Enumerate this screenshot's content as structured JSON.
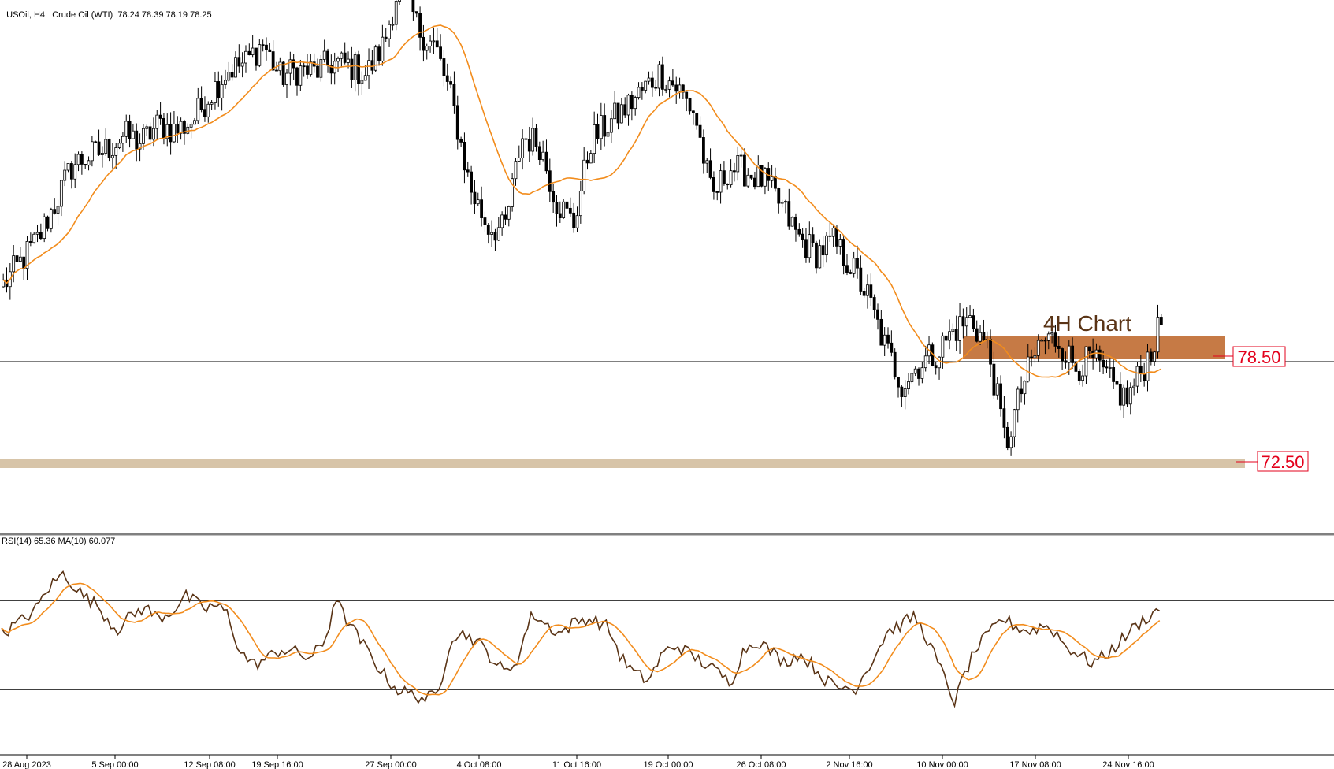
{
  "header": {
    "symbol": "USOil, H4:  Crude Oil (WTI)",
    "ohlc": "78.24 78.39 78.19 78.25"
  },
  "annotation": {
    "text": "4H Chart"
  },
  "levels": [
    {
      "label": "78.50",
      "value": 78.5
    },
    {
      "label": "72.50",
      "value": 72.5
    }
  ],
  "rsi_header": "RSI(14) 65.36 MA(10) 60.077",
  "colors": {
    "candle": "#000000",
    "ma": "#f28c1c",
    "rsi": "#5a3416",
    "zone_resistance": "#c67a45",
    "zone_support": "#d7c4a8",
    "level_label": "#e3001b"
  },
  "chart_data": [
    {
      "type": "candlestick",
      "title": "USOil, H4:  Crude Oil (WTI)",
      "ylim": [
        71.0,
        90.5
      ],
      "x_ticks": [
        "28 Aug 2023",
        "5 Sep 00:00",
        "12 Sep 08:00",
        "19 Sep 16:00",
        "27 Sep 00:00",
        "4 Oct 08:00",
        "11 Oct 16:00",
        "19 Oct 00:00",
        "26 Oct 08:00",
        "2 Nov 16:00",
        "10 Nov 00:00",
        "17 Nov 08:00",
        "24 Nov 16:00"
      ],
      "price_path": [
        [
          "28 Aug 2023",
          80.0
        ],
        [
          "29 Aug",
          81.0
        ],
        [
          "30 Aug",
          82.0
        ],
        [
          "31 Aug",
          83.6
        ],
        [
          "1 Sep",
          85.3
        ],
        [
          "4 Sep",
          85.7
        ],
        [
          "5 Sep 00:00",
          86.0
        ],
        [
          "6 Sep",
          86.6
        ],
        [
          "7 Sep",
          86.3
        ],
        [
          "8 Sep",
          87.1
        ],
        [
          "11 Sep",
          86.8
        ],
        [
          "12 Sep 08:00",
          87.3
        ],
        [
          "13 Sep",
          88.5
        ],
        [
          "14 Sep",
          89.5
        ],
        [
          "15 Sep",
          89.8
        ],
        [
          "18 Sep",
          90.7
        ],
        [
          "19 Sep 16:00",
          89.2
        ],
        [
          "20 Sep",
          89.5
        ],
        [
          "21 Sep",
          89.4
        ],
        [
          "22 Sep",
          89.8
        ],
        [
          "25 Sep",
          89.7
        ],
        [
          "26 Sep",
          89.3
        ],
        [
          "27 Sep 00:00",
          90.6
        ],
        [
          "28 Sep",
          93.6
        ],
        [
          "29 Sep",
          91.3
        ],
        [
          "2 Oct",
          90.5
        ],
        [
          "3 Oct",
          88.0
        ],
        [
          "4 Oct 08:00",
          84.3
        ],
        [
          "5 Oct",
          82.6
        ],
        [
          "6 Oct",
          82.4
        ],
        [
          "9 Oct",
          86.5
        ],
        [
          "10 Oct",
          86.3
        ],
        [
          "11 Oct 16:00",
          83.7
        ],
        [
          "12 Oct",
          82.7
        ],
        [
          "13 Oct",
          86.4
        ],
        [
          "16 Oct",
          87.1
        ],
        [
          "17 Oct",
          87.8
        ],
        [
          "18 Oct",
          88.6
        ],
        [
          "19 Oct 00:00",
          89.4
        ],
        [
          "20 Oct",
          88.7
        ],
        [
          "23 Oct",
          87.6
        ],
        [
          "24 Oct",
          83.8
        ],
        [
          "25 Oct",
          85.2
        ],
        [
          "26 Oct 08:00",
          85.0
        ],
        [
          "27 Oct",
          84.6
        ],
        [
          "30 Oct",
          83.5
        ],
        [
          "31 Oct",
          82.1
        ],
        [
          "1 Nov",
          81.4
        ],
        [
          "2 Nov 16:00",
          81.9
        ],
        [
          "3 Nov",
          80.9
        ],
        [
          "6 Nov",
          79.5
        ],
        [
          "7 Nov",
          77.3
        ],
        [
          "8 Nov",
          75.6
        ],
        [
          "9 Nov",
          76.5
        ],
        [
          "10 Nov 00:00",
          77.0
        ],
        [
          "13 Nov",
          78.0
        ],
        [
          "14 Nov",
          78.5
        ],
        [
          "15 Nov",
          77.1
        ],
        [
          "16 Nov",
          72.9
        ],
        [
          "17 Nov",
          75.6
        ],
        [
          "20 Nov",
          77.5
        ],
        [
          "21 Nov",
          77.6
        ],
        [
          "22 Nov",
          76.4
        ],
        [
          "23 Nov",
          76.7
        ],
        [
          "24 Nov 16:00",
          75.7
        ],
        [
          "27 Nov",
          74.9
        ],
        [
          "28 Nov",
          76.4
        ],
        [
          "29 Nov",
          78.25
        ]
      ],
      "series": [
        {
          "name": "USOil"
        },
        {
          "type": "line",
          "smoothing": 20
        }
      ]
    },
    {
      "type": "line",
      "title": "RSI(14) 65.36 MA(10) 60.077",
      "ylim": [
        0,
        100
      ],
      "levels": [
        70,
        30
      ],
      "series": [
        {
          "name": "RSI(14)",
          "smoothing": 1
        },
        {
          "name": "MA(10)",
          "smoothing": 10
        }
      ],
      "rsi_path": [
        [
          0,
          55
        ],
        [
          3,
          61
        ],
        [
          5,
          66
        ],
        [
          7,
          76
        ],
        [
          9,
          82
        ],
        [
          10,
          79
        ],
        [
          12,
          72
        ],
        [
          14,
          68
        ],
        [
          16,
          60
        ],
        [
          17,
          57
        ],
        [
          19,
          63
        ],
        [
          21,
          67
        ],
        [
          23,
          62
        ],
        [
          25,
          65
        ],
        [
          27,
          72
        ],
        [
          28,
          70
        ],
        [
          30,
          66
        ],
        [
          31,
          68
        ],
        [
          33,
          65
        ],
        [
          35,
          47
        ],
        [
          37,
          41
        ],
        [
          39,
          44
        ],
        [
          41,
          48
        ],
        [
          43,
          47
        ],
        [
          45,
          44
        ],
        [
          47,
          49
        ],
        [
          48,
          57
        ],
        [
          49,
          73
        ],
        [
          50,
          64
        ],
        [
          52,
          55
        ],
        [
          54,
          46
        ],
        [
          56,
          37
        ],
        [
          58,
          30
        ],
        [
          60,
          28
        ],
        [
          62,
          26
        ],
        [
          64,
          27
        ],
        [
          66,
          54
        ],
        [
          68,
          55
        ],
        [
          70,
          51
        ],
        [
          72,
          44
        ],
        [
          74,
          37
        ],
        [
          76,
          45
        ],
        [
          77,
          57
        ],
        [
          78,
          64
        ],
        [
          80,
          59
        ],
        [
          82,
          55
        ],
        [
          84,
          60
        ],
        [
          86,
          62
        ],
        [
          87,
          61
        ],
        [
          89,
          58
        ],
        [
          91,
          44
        ],
        [
          93,
          37
        ],
        [
          95,
          34
        ],
        [
          97,
          46
        ],
        [
          99,
          50
        ],
        [
          101,
          46
        ],
        [
          103,
          42
        ],
        [
          105,
          38
        ],
        [
          107,
          33
        ],
        [
          109,
          48
        ],
        [
          111,
          52
        ],
        [
          113,
          47
        ],
        [
          115,
          42
        ],
        [
          117,
          46
        ],
        [
          119,
          41
        ],
        [
          121,
          34
        ],
        [
          123,
          30
        ],
        [
          124,
          32
        ],
        [
          125,
          29
        ],
        [
          126,
          34
        ],
        [
          128,
          44
        ],
        [
          130,
          56
        ],
        [
          132,
          59
        ],
        [
          134,
          63
        ],
        [
          136,
          52
        ],
        [
          138,
          38
        ],
        [
          140,
          24
        ],
        [
          141,
          34
        ],
        [
          143,
          48
        ],
        [
          145,
          55
        ],
        [
          147,
          62
        ],
        [
          149,
          58
        ],
        [
          151,
          56
        ],
        [
          153,
          59
        ],
        [
          155,
          55
        ],
        [
          156,
          50
        ],
        [
          158,
          46
        ],
        [
          160,
          42
        ],
        [
          162,
          45
        ],
        [
          164,
          51
        ],
        [
          166,
          57
        ],
        [
          168,
          62
        ],
        [
          170,
          66
        ]
      ]
    }
  ]
}
